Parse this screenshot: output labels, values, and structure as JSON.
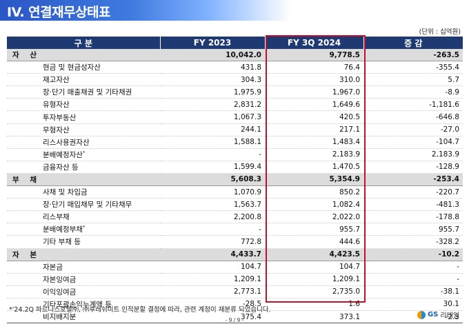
{
  "title": "IV. 연결재무상태표",
  "unit": "(단위 : 십억원)",
  "columns": [
    "구 분",
    "FY 2023",
    "FY 3Q 2024",
    "증 감"
  ],
  "sections": [
    {
      "label": "자 산",
      "fy2023": "10,042.0",
      "fy3q2024": "9,778.5",
      "change": "-263.5",
      "rows": [
        {
          "label": "현금 및 현금성자산",
          "fy2023": "431.8",
          "fy3q2024": "76.4",
          "change": "-355.4"
        },
        {
          "label": "재고자산",
          "fy2023": "304.3",
          "fy3q2024": "310.0",
          "change": "5.7"
        },
        {
          "label": "장·단기 매출채권 및 기타채권",
          "fy2023": "1,975.9",
          "fy3q2024": "1,967.0",
          "change": "-8.9"
        },
        {
          "label": "유형자산",
          "fy2023": "2,831.2",
          "fy3q2024": "1,649.6",
          "change": "-1,181.6"
        },
        {
          "label": "투자부동산",
          "fy2023": "1,067.3",
          "fy3q2024": "420.5",
          "change": "-646.8"
        },
        {
          "label": "무형자산",
          "fy2023": "244.1",
          "fy3q2024": "217.1",
          "change": "-27.0"
        },
        {
          "label": "리스사용권자산",
          "fy2023": "1,588.1",
          "fy3q2024": "1,483.4",
          "change": "-104.7"
        },
        {
          "label": "분배예정자산",
          "note": "*",
          "fy2023": "-",
          "fy3q2024": "2,183.9",
          "change": "2,183.9"
        },
        {
          "label": "금융자산 등",
          "fy2023": "1,599.4",
          "fy3q2024": "1,470.5",
          "change": "-128.9"
        }
      ]
    },
    {
      "label": "부 채",
      "fy2023": "5,608.3",
      "fy3q2024": "5,354.9",
      "change": "-253.4",
      "rows": [
        {
          "label": "사채 및 차입금",
          "fy2023": "1,070.9",
          "fy3q2024": "850.2",
          "change": "-220.7"
        },
        {
          "label": "장·단기 매입채무 및 기타채무",
          "fy2023": "1,563.7",
          "fy3q2024": "1,082.4",
          "change": "-481.3"
        },
        {
          "label": "리스부채",
          "fy2023": "2,200.8",
          "fy3q2024": "2,022.0",
          "change": "-178.8"
        },
        {
          "label": "분배예정부채",
          "note": "*",
          "fy2023": "-",
          "fy3q2024": "955.7",
          "change": "955.7"
        },
        {
          "label": "기타 부채 등",
          "fy2023": "772.8",
          "fy3q2024": "444.6",
          "change": "-328.2"
        }
      ]
    },
    {
      "label": "자 본",
      "fy2023": "4,433.7",
      "fy3q2024": "4,423.5",
      "change": "-10.2",
      "rows": [
        {
          "label": "자본금",
          "fy2023": "104.7",
          "fy3q2024": "104.7",
          "change": "-"
        },
        {
          "label": "자본잉여금",
          "fy2023": "1,209.1",
          "fy3q2024": "1,209.1",
          "change": "-"
        },
        {
          "label": "이익잉여금",
          "fy2023": "2,773.1",
          "fy3q2024": "2,735.0",
          "change": "-38.1"
        },
        {
          "label": "기타포괄손익누계액 등",
          "fy2023": "-28.5",
          "fy3q2024": "1.6",
          "change": "30.1"
        },
        {
          "label": "비지배지분",
          "fy2023": "375.4",
          "fy3q2024": "373.1",
          "change": "-2.3"
        }
      ]
    }
  ],
  "footnote": "*'24.2Q 파르나스호텔㈜, ㈜후레쉬미트 인적분할 결정에 따라, 관련 계정이 재분류 되었습니다.",
  "page_number": "- 9 / 9 -",
  "logo": {
    "brand": "GS",
    "suffix": "리테일"
  },
  "colors": {
    "header_bar": "#1f3a73",
    "section_row": "#dcdcdc",
    "highlight_box": "#c0102b",
    "title_gradient": "#2a56c6"
  }
}
